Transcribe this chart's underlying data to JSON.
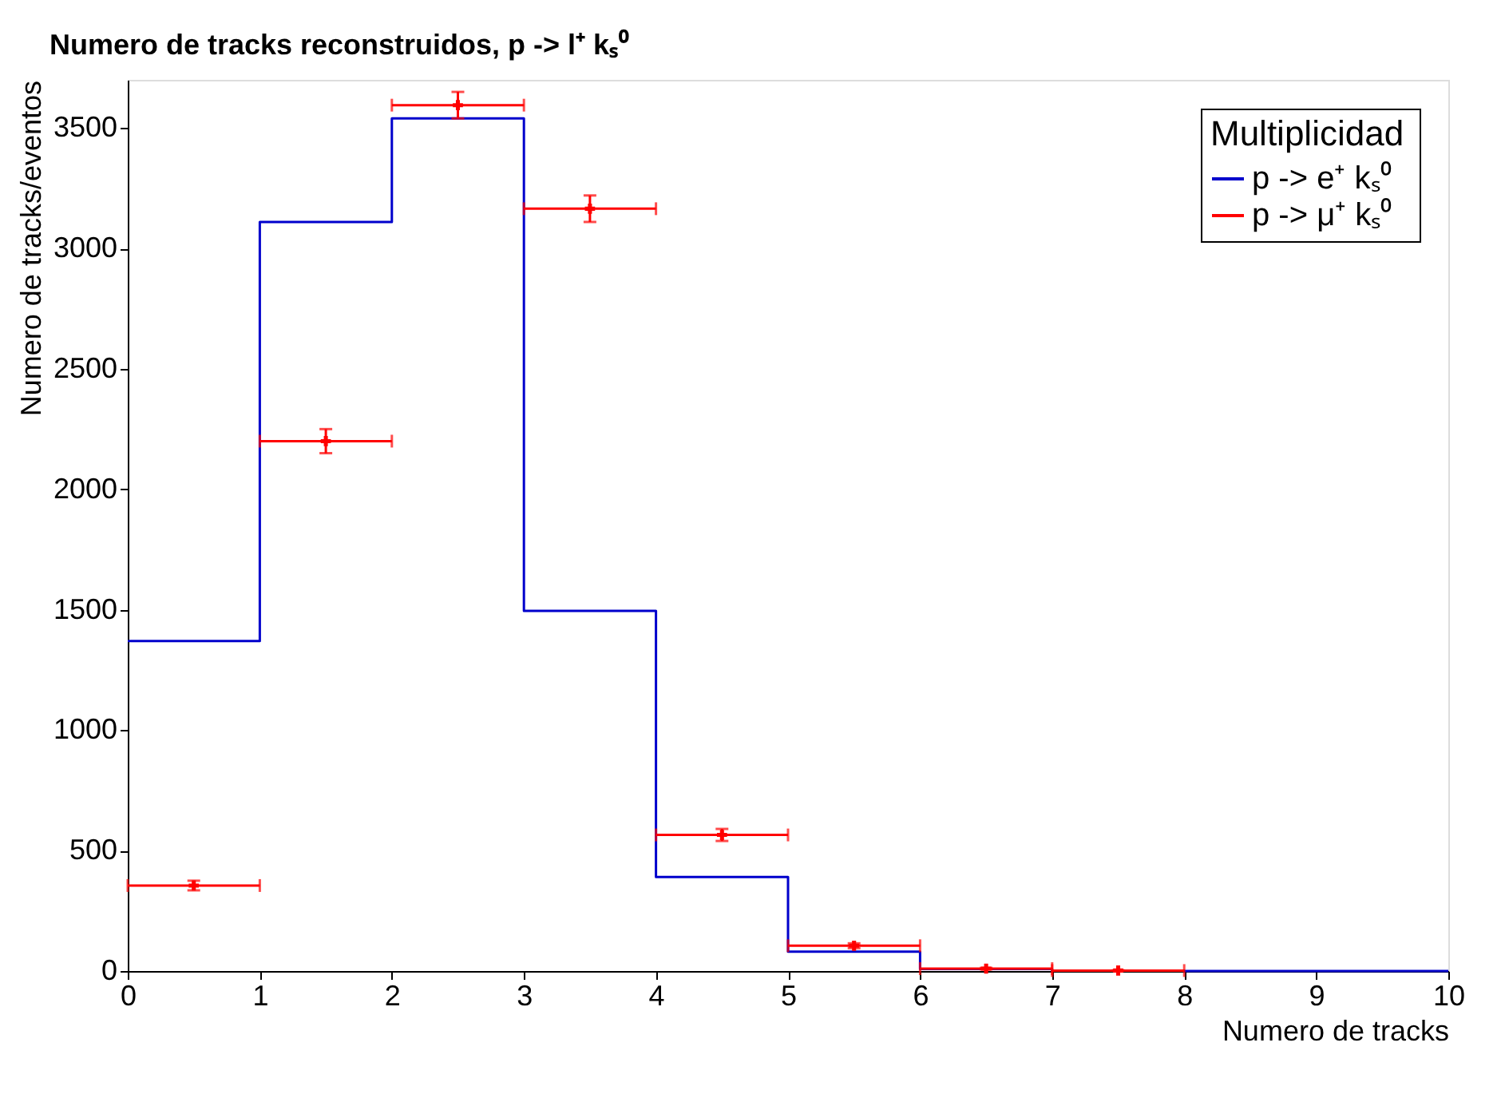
{
  "chart_data": {
    "type": "histogram",
    "title": "Numero de tracks reconstruidos, p -> l⁺   kₛ⁰",
    "xlabel": "Numero de tracks",
    "ylabel": "Numero de tracks/eventos",
    "legend_title": "Multiplicidad",
    "bins": [
      0,
      1,
      2,
      3,
      4,
      5,
      6,
      7,
      8,
      9,
      10
    ],
    "series": [
      {
        "name": "p -> e⁺   kₛ⁰",
        "color": "#0000cc",
        "values": [
          1370,
          3110,
          3540,
          1495,
          390,
          80,
          8,
          2,
          0,
          0
        ]
      },
      {
        "name": "p -> μ⁺   kₛ⁰",
        "color": "#ff0000",
        "type": "scatter",
        "x": [
          0.5,
          1.5,
          2.5,
          3.5,
          4.5,
          5.5,
          6.5,
          7.5
        ],
        "values": [
          355,
          2200,
          3595,
          3165,
          565,
          105,
          10,
          2
        ],
        "errors": [
          20,
          50,
          55,
          55,
          25,
          10,
          3,
          1
        ],
        "xerrors": [
          0.5,
          0.5,
          0.5,
          0.5,
          0.5,
          0.5,
          0.5,
          0.5
        ]
      }
    ],
    "xlim": [
      0,
      10
    ],
    "xticks": [
      0,
      1,
      2,
      3,
      4,
      5,
      6,
      7,
      8,
      9,
      10
    ],
    "ylim": [
      0,
      3700
    ],
    "yticks": [
      0,
      500,
      1000,
      1500,
      2000,
      2500,
      3000,
      3500
    ],
    "legend": "top right",
    "grid": false,
    "marker": "cross"
  }
}
